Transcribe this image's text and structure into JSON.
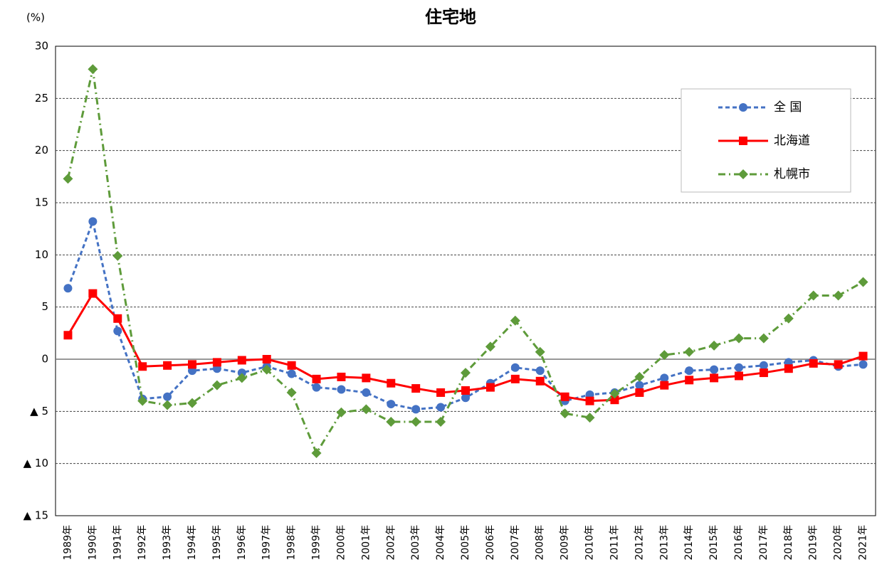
{
  "chart_data": {
    "type": "line",
    "title": "住宅地",
    "y_label": "(%)",
    "categories": [
      "1989年",
      "1990年",
      "1991年",
      "1992年",
      "1993年",
      "1994年",
      "1995年",
      "1996年",
      "1997年",
      "1998年",
      "1999年",
      "2000年",
      "2001年",
      "2002年",
      "2003年",
      "2004年",
      "2005年",
      "2006年",
      "2007年",
      "2008年",
      "2009年",
      "2010年",
      "2011年",
      "2012年",
      "2013年",
      "2014年",
      "2015年",
      "2016年",
      "2017年",
      "2018年",
      "2019年",
      "2020年",
      "2021年"
    ],
    "series": [
      {
        "name": "全 国",
        "color": "#4472c4",
        "line_style": "dashed",
        "marker": "circle",
        "values": [
          6.8,
          13.2,
          2.7,
          -3.8,
          -3.6,
          -1.1,
          -0.9,
          -1.3,
          -0.7,
          -1.4,
          -2.7,
          -2.9,
          -3.2,
          -4.3,
          -4.8,
          -4.6,
          -3.7,
          -2.3,
          -0.8,
          -1.1,
          -4.0,
          -3.4,
          -3.2,
          -2.5,
          -1.8,
          -1.1,
          -1.0,
          -0.8,
          -0.6,
          -0.3,
          -0.1,
          -0.7,
          -0.5
        ]
      },
      {
        "name": "北海道",
        "color": "#ff0000",
        "line_style": "solid",
        "marker": "square",
        "values": [
          2.3,
          6.3,
          3.9,
          -0.7,
          -0.6,
          -0.5,
          -0.3,
          -0.1,
          0.0,
          -0.6,
          -1.9,
          -1.7,
          -1.8,
          -2.3,
          -2.8,
          -3.2,
          -3.0,
          -2.7,
          -1.9,
          -2.1,
          -3.6,
          -4.0,
          -3.9,
          -3.2,
          -2.5,
          -2.0,
          -1.8,
          -1.6,
          -1.3,
          -0.9,
          -0.4,
          -0.5,
          0.3
        ]
      },
      {
        "name": "札幌市",
        "color": "#5e9b3a",
        "line_style": "dashdot",
        "marker": "diamond",
        "values": [
          17.3,
          27.8,
          9.9,
          -4.0,
          -4.4,
          -4.2,
          -2.5,
          -1.8,
          -1.0,
          -3.2,
          -9.0,
          -5.1,
          -4.8,
          -6.0,
          -6.0,
          -6.0,
          -1.3,
          1.2,
          3.7,
          0.7,
          -5.2,
          -5.6,
          -3.3,
          -1.7,
          0.4,
          0.7,
          1.3,
          2.0,
          2.0,
          3.9,
          6.1,
          6.1,
          7.4
        ]
      }
    ],
    "ylim": [
      -15,
      30
    ],
    "yticks": [
      {
        "value": -15,
        "label": "▲ 15"
      },
      {
        "value": -10,
        "label": "▲ 10"
      },
      {
        "value": -5,
        "label": "▲ 5"
      },
      0,
      5,
      10,
      15,
      20,
      25,
      30
    ],
    "grid": true,
    "legend": "upper right"
  }
}
